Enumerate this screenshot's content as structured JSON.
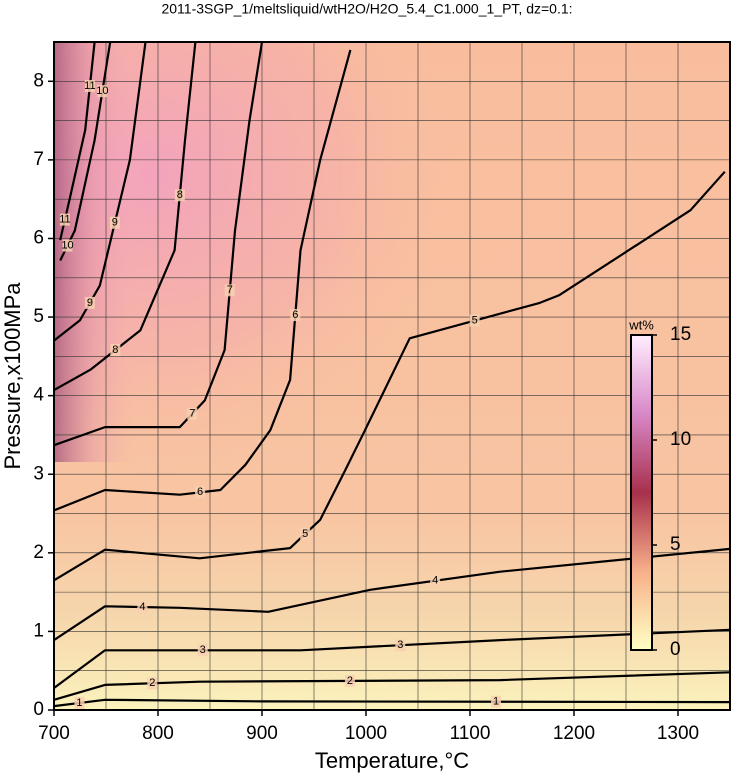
{
  "chart_data": {
    "type": "contour",
    "title": "2011-3SGP_1/meltsliquid/wtH2O/H2O_5.4_C1.000_1_PT, dz=0.1:",
    "x_label": "Temperature,°C",
    "y_label": "Pressure,x100MPa",
    "xlim": [
      700,
      1350
    ],
    "ylim": [
      0,
      8.5
    ],
    "xticks": [
      700,
      800,
      900,
      1000,
      1100,
      1200,
      1300
    ],
    "yticks": [
      0,
      1,
      2,
      3,
      4,
      5,
      6,
      7,
      8
    ],
    "x_minor_grid": [
      750,
      850,
      950,
      1050,
      1150,
      1250,
      1350
    ],
    "y_minor_grid": [
      0.5,
      1.5,
      2.5,
      3.5,
      4.5,
      5.5,
      6.5,
      7.5,
      8.5
    ],
    "grid": true,
    "contours": [
      {
        "level": 1,
        "x": [
          700,
          749,
          900,
          1350
        ],
        "y": [
          0.05,
          0.13,
          0.11,
          0.1
        ]
      },
      {
        "level": 2,
        "x": [
          700,
          749,
          840,
          1129,
          1350
        ],
        "y": [
          0.13,
          0.32,
          0.36,
          0.38,
          0.48
        ]
      },
      {
        "level": 3,
        "x": [
          700,
          749,
          937,
          1129,
          1350
        ],
        "y": [
          0.28,
          0.76,
          0.76,
          0.89,
          1.02
        ]
      },
      {
        "level": 4,
        "x": [
          700,
          749,
          821,
          906,
          1004,
          1129,
          1350
        ],
        "y": [
          0.89,
          1.32,
          1.3,
          1.25,
          1.53,
          1.76,
          2.05
        ]
      },
      {
        "level": 5,
        "x": [
          700,
          749,
          840,
          927,
          956,
          980,
          999,
          1042,
          1167,
          1186,
          1312,
          1345
        ],
        "y": [
          1.65,
          2.04,
          1.93,
          2.06,
          2.42,
          3.05,
          3.56,
          4.73,
          5.18,
          5.28,
          6.36,
          6.85
        ]
      },
      {
        "level": 6,
        "x": [
          700,
          749,
          821,
          860,
          884,
          908,
          927,
          937,
          956,
          985
        ],
        "y": [
          2.54,
          2.8,
          2.74,
          2.8,
          3.12,
          3.56,
          4.2,
          5.85,
          7.0,
          8.4
        ]
      },
      {
        "level": 7,
        "x": [
          700,
          749,
          821,
          845,
          864,
          874,
          888,
          900
        ],
        "y": [
          3.37,
          3.6,
          3.6,
          3.94,
          4.58,
          6.1,
          7.5,
          8.5
        ]
      },
      {
        "level": 8,
        "x": [
          700,
          735,
          783,
          816,
          826,
          836
        ],
        "y": [
          4.07,
          4.33,
          4.83,
          5.85,
          7.25,
          8.5
        ]
      },
      {
        "level": 9,
        "x": [
          700,
          725,
          744,
          773,
          788
        ],
        "y": [
          4.7,
          4.96,
          5.4,
          7.0,
          8.5
        ]
      },
      {
        "level": 10,
        "x": [
          706,
          720,
          739,
          754
        ],
        "y": [
          5.72,
          6.1,
          7.25,
          8.5
        ]
      },
      {
        "level": 11,
        "x": [
          706,
          715,
          730,
          739
        ],
        "y": [
          5.98,
          6.5,
          7.38,
          8.5
        ]
      }
    ],
    "colorbar": {
      "label": "wt%",
      "lim": [
        0,
        15
      ],
      "ticks": [
        0,
        5,
        10,
        15
      ],
      "colors": [
        "#ffffc4",
        "#f8b08a",
        "#a8304c",
        "#d888c8",
        "#ffeeff"
      ]
    }
  }
}
